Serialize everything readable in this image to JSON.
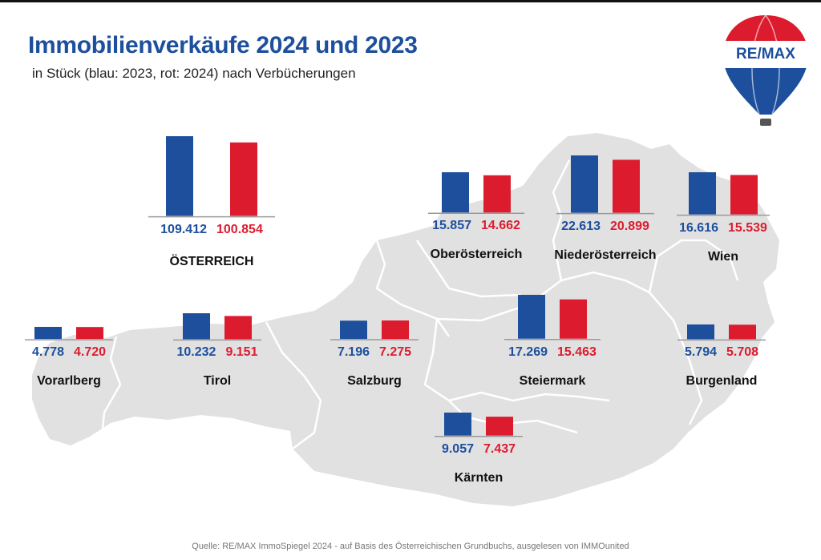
{
  "header": {
    "title": "Immobilienverkäufe 2024 und 2023",
    "subtitle": "in Stück  (blau: 2023, rot: 2024) nach Verbücherungen"
  },
  "logo": {
    "text": "RE/MAX"
  },
  "colors": {
    "y2023": "#1d4f9c",
    "y2024": "#dc1c2e",
    "map": "#e1e1e1",
    "map_border": "#ffffff"
  },
  "chart_data": {
    "type": "bar",
    "title": "Immobilienverkäufe 2024 und 2023",
    "subtitle": "in Stück  (blau: 2023, rot: 2024) nach Verbücherungen",
    "series": [
      {
        "name": "2023"
      },
      {
        "name": "2024"
      }
    ],
    "categories": [
      {
        "name": "ÖSTERREICH",
        "v2023": 109412,
        "v2024": 100854,
        "label2023": "109.412",
        "label2024": "100.854"
      },
      {
        "name": "Oberösterreich",
        "v2023": 15857,
        "v2024": 14662,
        "label2023": "15.857",
        "label2024": "14.662"
      },
      {
        "name": "Niederösterreich",
        "v2023": 22613,
        "v2024": 20899,
        "label2023": "22.613",
        "label2024": "20.899"
      },
      {
        "name": "Wien",
        "v2023": 16616,
        "v2024": 15539,
        "label2023": "16.616",
        "label2024": "15.539"
      },
      {
        "name": "Vorarlberg",
        "v2023": 4778,
        "v2024": 4720,
        "label2023": "4.778",
        "label2024": "4.720"
      },
      {
        "name": "Tirol",
        "v2023": 10232,
        "v2024": 9151,
        "label2023": "10.232",
        "label2024": "9.151"
      },
      {
        "name": "Salzburg",
        "v2023": 7196,
        "v2024": 7275,
        "label2023": "7.196",
        "label2024": "7.275"
      },
      {
        "name": "Steiermark",
        "v2023": 17269,
        "v2024": 15463,
        "label2023": "17.269",
        "label2024": "15.463"
      },
      {
        "name": "Burgenland",
        "v2023": 5794,
        "v2024": 5708,
        "label2023": "5.794",
        "label2024": "5.708"
      },
      {
        "name": "Kärnten",
        "v2023": 9057,
        "v2024": 7437,
        "label2023": "9.057",
        "label2024": "7.437"
      }
    ]
  },
  "footer": {
    "source": "Quelle: RE/MAX ImmoSpiegel 2024 - auf Basis des Österreichischen Grundbuchs, ausgelesen von IMMOunited"
  }
}
